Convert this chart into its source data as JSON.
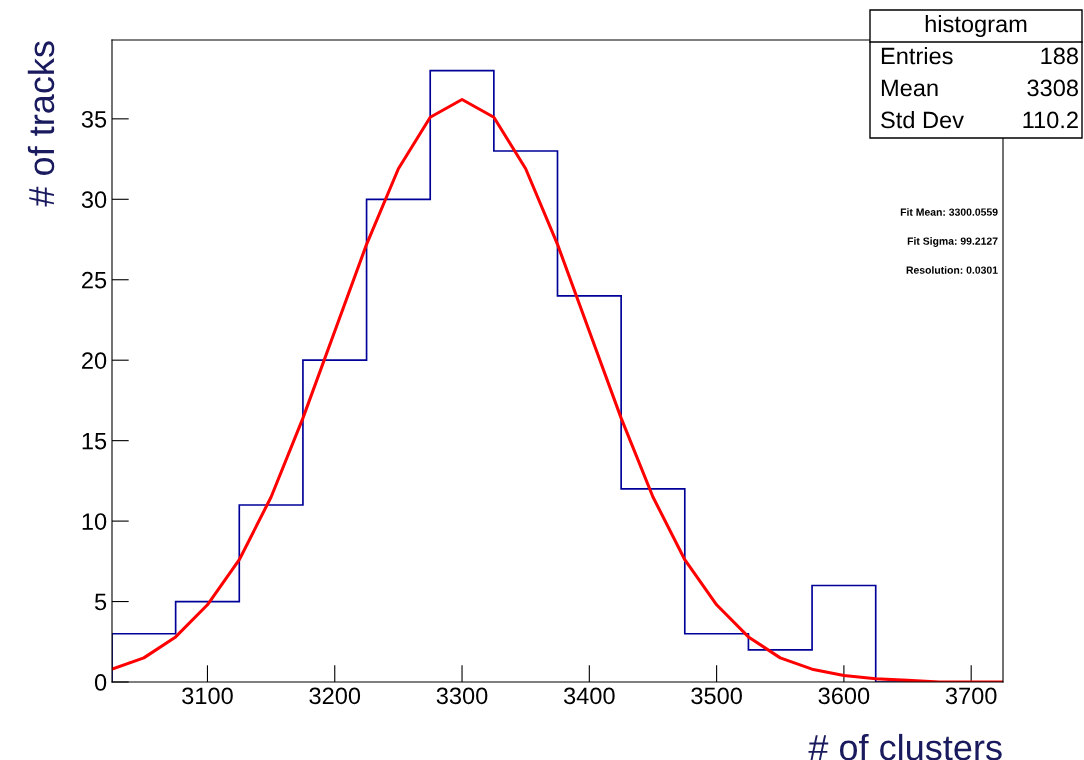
{
  "chart_data": {
    "type": "histogram",
    "xlabel": "# of clusters",
    "ylabel": "# of tracks",
    "bins": [
      3025,
      3075,
      3125,
      3175,
      3225,
      3275,
      3325,
      3375,
      3425,
      3475,
      3525,
      3575,
      3625,
      3675,
      3725
    ],
    "values": [
      3,
      5,
      11,
      20,
      30,
      38,
      33,
      24,
      12,
      3,
      2,
      6,
      0,
      0
    ],
    "color": "#000099",
    "series": [
      {
        "type": "line",
        "color": "#ff0000",
        "x": [
          3025,
          3050,
          3075,
          3100,
          3125,
          3150,
          3175,
          3200,
          3225,
          3250,
          3275,
          3300,
          3325,
          3350,
          3375,
          3400,
          3425,
          3450,
          3475,
          3500,
          3525,
          3550,
          3575,
          3600,
          3625,
          3650,
          3675,
          3700,
          3725
        ],
        "values": [
          0.8,
          1.5,
          2.8,
          4.8,
          7.6,
          11.5,
          16.4,
          21.8,
          27.2,
          31.9,
          35.1,
          36.2,
          35.1,
          31.9,
          27.2,
          21.8,
          16.4,
          11.5,
          7.6,
          4.8,
          2.8,
          1.5,
          0.8,
          0.4,
          0.2,
          0.1,
          0.0,
          0.0,
          0.0
        ]
      }
    ],
    "xlim": [
      3025,
      3725
    ],
    "xticks": [
      3100,
      3200,
      3300,
      3400,
      3500,
      3600,
      3700
    ],
    "ylim": [
      0,
      39.9
    ],
    "yticks": [
      0,
      5,
      10,
      15,
      20,
      25,
      30,
      35
    ],
    "grid": false,
    "legend": false,
    "annotations": [
      "histogram",
      "Entries",
      "188",
      "Mean",
      "3308",
      "Std Dev",
      "110.2",
      "Fit Mean: 3300.0559",
      "Fit Sigma: 99.2127",
      "Resolution: 0.0301"
    ]
  }
}
